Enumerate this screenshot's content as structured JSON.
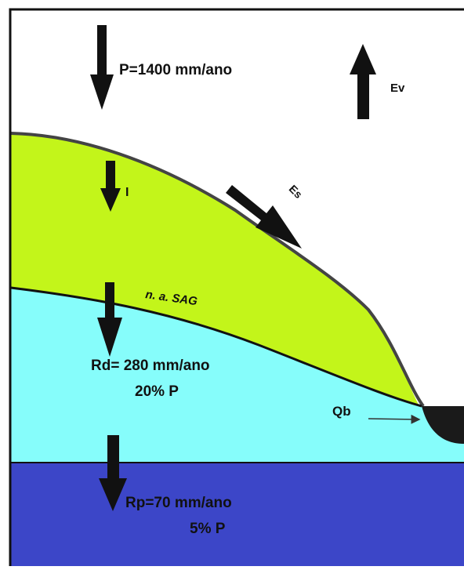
{
  "labels": {
    "precipitation": "P=1400 mm/ano",
    "evaporation": "Ev",
    "infiltration": "I",
    "runoff": "Es",
    "water_table": "n. a. SAG",
    "direct_recharge": "Rd= 280 mm/ano",
    "direct_recharge_share": "20% P",
    "baseflow": "Qb",
    "deep_recharge": "Rp=70 mm/ano",
    "deep_recharge_share": "5% P"
  }
}
